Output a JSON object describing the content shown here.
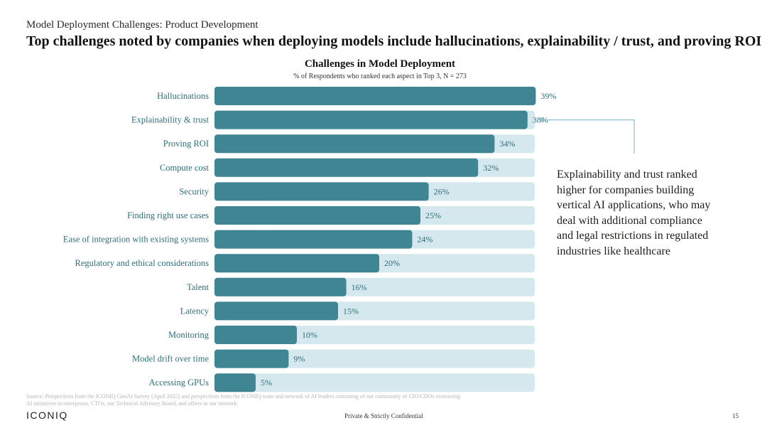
{
  "eyebrow": "Model Deployment Challenges: Product Development",
  "headline": "Top challenges noted by companies when deploying models include hallucinations, explainability / trust, and proving ROI",
  "callout": "Explainability and trust ranked higher for companies building vertical AI applications, who may deal with additional compliance and legal restrictions in regulated industries like healthcare",
  "source": "Source: Perspectives from the ICONIQ GenAI Survey (April 2025) and perspectives from the ICONIQ team and network of AI leaders consisting of our community of CIO/CDOs overseeing AI initiatives in enterprises, CTOs, our Technical Advisory Board, and others in our network",
  "footer": {
    "logo": "ICONIQ",
    "confidential": "Private & Strictly Confidential",
    "page": "15"
  },
  "colors": {
    "bar": "#3f8593",
    "track": "#d5e8ed",
    "callout_line": "#8fbfc9"
  },
  "chart_data": {
    "type": "bar",
    "orientation": "horizontal",
    "title": "Challenges in Model Deployment",
    "subtitle": "% of Respondents who ranked each aspect in Top 3, N = 273",
    "categories": [
      "Hallucinations",
      "Explainability & trust",
      "Proving ROI",
      "Compute cost",
      "Security",
      "Finding right use cases",
      "Ease of integration with existing systems",
      "Regulatory and ethical considerations",
      "Talent",
      "Latency",
      "Monitoring",
      "Model drift over time",
      "Accessing GPUs"
    ],
    "values": [
      39,
      38,
      34,
      32,
      26,
      25,
      24,
      20,
      16,
      15,
      10,
      9,
      5
    ],
    "value_suffix": "%",
    "xlim": [
      0,
      100
    ],
    "grid": false,
    "highlighted_category": "Explainability & trust"
  }
}
